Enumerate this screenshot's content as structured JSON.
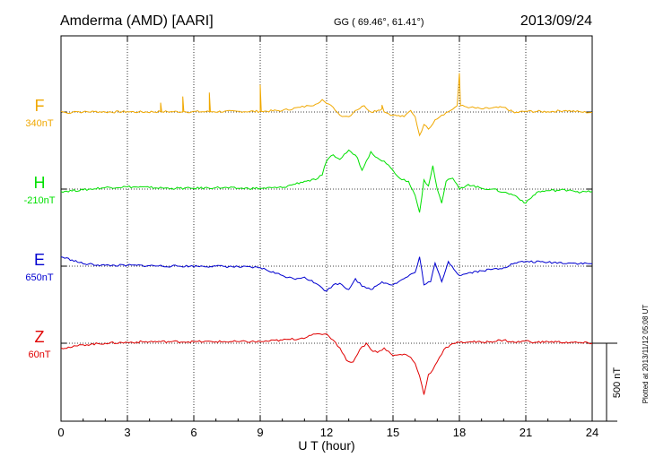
{
  "chart_data": {
    "type": "line",
    "station_title": "Amderma (AMD)  [AARI]",
    "coords_label": "GG ( 69.46°,  61.41°)",
    "date": "2013/09/24",
    "xlabel": "U T (hour)",
    "xlim": [
      0,
      24
    ],
    "x_ticks": [
      "0",
      "3",
      "6",
      "9",
      "12",
      "15",
      "18",
      "21",
      "24"
    ],
    "plotted_note": "Plotted at 2013/11/12 05:08 UT",
    "scale_label": "500 nT",
    "series": [
      {
        "name": "F",
        "baseline_label": "340nT",
        "color": "#f0a800",
        "points": [
          [
            0,
            4
          ],
          [
            0.3,
            -8
          ],
          [
            0.6,
            4
          ],
          [
            1,
            0
          ],
          [
            1.5,
            3
          ],
          [
            2,
            0
          ],
          [
            3,
            2
          ],
          [
            3.5,
            0
          ],
          [
            4.5,
            2
          ],
          [
            4.5,
            60
          ],
          [
            4.55,
            2
          ],
          [
            5.5,
            2
          ],
          [
            5.5,
            100
          ],
          [
            5.55,
            2
          ],
          [
            6.7,
            2
          ],
          [
            6.7,
            125
          ],
          [
            6.75,
            2
          ],
          [
            8,
            4
          ],
          [
            9,
            4
          ],
          [
            9,
            175
          ],
          [
            9.05,
            4
          ],
          [
            10,
            10
          ],
          [
            10.8,
            30
          ],
          [
            11.2,
            40
          ],
          [
            11.5,
            50
          ],
          [
            11.8,
            80
          ],
          [
            12,
            55
          ],
          [
            12.3,
            30
          ],
          [
            12.6,
            -20
          ],
          [
            13,
            -30
          ],
          [
            13.3,
            10
          ],
          [
            13.7,
            40
          ],
          [
            14,
            0
          ],
          [
            14.5,
            20
          ],
          [
            14.5,
            45
          ],
          [
            14.6,
            0
          ],
          [
            15,
            -20
          ],
          [
            15.5,
            -30
          ],
          [
            15.8,
            10
          ],
          [
            16,
            -30
          ],
          [
            16.2,
            -150
          ],
          [
            16.4,
            -80
          ],
          [
            16.6,
            -110
          ],
          [
            16.9,
            -50
          ],
          [
            17.2,
            -20
          ],
          [
            17.6,
            10
          ],
          [
            17.9,
            40
          ],
          [
            18,
            250
          ],
          [
            18.05,
            40
          ],
          [
            18.5,
            30
          ],
          [
            19,
            20
          ],
          [
            20,
            30
          ],
          [
            20.5,
            -5
          ],
          [
            21,
            5
          ],
          [
            22,
            2
          ],
          [
            22.8,
            10
          ],
          [
            23.5,
            0
          ],
          [
            24,
            -3
          ]
        ]
      },
      {
        "name": "H",
        "baseline_label": "-210nT",
        "color": "#00e000",
        "points": [
          [
            0,
            -15
          ],
          [
            1,
            -5
          ],
          [
            2,
            10
          ],
          [
            3,
            15
          ],
          [
            4,
            10
          ],
          [
            5,
            5
          ],
          [
            6,
            5
          ],
          [
            7,
            10
          ],
          [
            8,
            5
          ],
          [
            9,
            5
          ],
          [
            10,
            10
          ],
          [
            10.5,
            30
          ],
          [
            11,
            50
          ],
          [
            11.5,
            60
          ],
          [
            11.8,
            90
          ],
          [
            12,
            180
          ],
          [
            12.3,
            220
          ],
          [
            12.6,
            190
          ],
          [
            13,
            250
          ],
          [
            13.4,
            200
          ],
          [
            13.6,
            120
          ],
          [
            14,
            240
          ],
          [
            14.3,
            200
          ],
          [
            14.6,
            180
          ],
          [
            15,
            120
          ],
          [
            15.3,
            70
          ],
          [
            15.7,
            50
          ],
          [
            16,
            -40
          ],
          [
            16.2,
            -150
          ],
          [
            16.4,
            60
          ],
          [
            16.6,
            20
          ],
          [
            16.8,
            150
          ],
          [
            17,
            0
          ],
          [
            17.2,
            -90
          ],
          [
            17.4,
            50
          ],
          [
            17.7,
            70
          ],
          [
            18,
            0
          ],
          [
            18.4,
            30
          ],
          [
            19,
            5
          ],
          [
            19.5,
            0
          ],
          [
            20,
            -20
          ],
          [
            20.5,
            -40
          ],
          [
            21,
            -90
          ],
          [
            21.5,
            -20
          ],
          [
            22,
            -10
          ],
          [
            23,
            -5
          ],
          [
            23.5,
            -20
          ],
          [
            24,
            -15
          ]
        ]
      },
      {
        "name": "E",
        "baseline_label": "650nT",
        "color": "#0000d0",
        "points": [
          [
            0,
            60
          ],
          [
            0.5,
            40
          ],
          [
            1,
            15
          ],
          [
            2,
            5
          ],
          [
            3,
            5
          ],
          [
            4,
            3
          ],
          [
            5,
            0
          ],
          [
            7,
            0
          ],
          [
            9,
            -10
          ],
          [
            10,
            -60
          ],
          [
            10.5,
            -80
          ],
          [
            11,
            -70
          ],
          [
            11.5,
            -110
          ],
          [
            11.8,
            -140
          ],
          [
            12,
            -160
          ],
          [
            12.3,
            -120
          ],
          [
            12.6,
            -110
          ],
          [
            13,
            -150
          ],
          [
            13.3,
            -80
          ],
          [
            13.6,
            -130
          ],
          [
            14,
            -150
          ],
          [
            14.5,
            -100
          ],
          [
            15,
            -120
          ],
          [
            15.5,
            -80
          ],
          [
            16,
            -40
          ],
          [
            16.2,
            60
          ],
          [
            16.4,
            -120
          ],
          [
            16.7,
            -100
          ],
          [
            16.9,
            20
          ],
          [
            17.2,
            -100
          ],
          [
            17.5,
            30
          ],
          [
            18,
            -60
          ],
          [
            18.5,
            -40
          ],
          [
            19,
            -30
          ],
          [
            20,
            -10
          ],
          [
            20.5,
            20
          ],
          [
            21,
            30
          ],
          [
            22,
            25
          ],
          [
            23,
            20
          ],
          [
            24,
            15
          ]
        ]
      },
      {
        "name": "Z",
        "baseline_label": "60nT",
        "color": "#e00000",
        "points": [
          [
            0,
            -30
          ],
          [
            0.5,
            -25
          ],
          [
            1,
            -10
          ],
          [
            2,
            0
          ],
          [
            3,
            5
          ],
          [
            4,
            10
          ],
          [
            5,
            10
          ],
          [
            6,
            10
          ],
          [
            7,
            10
          ],
          [
            8,
            10
          ],
          [
            9,
            10
          ],
          [
            10,
            20
          ],
          [
            10.8,
            30
          ],
          [
            11.3,
            50
          ],
          [
            11.7,
            60
          ],
          [
            12,
            60
          ],
          [
            12.3,
            20
          ],
          [
            12.6,
            -30
          ],
          [
            12.9,
            -110
          ],
          [
            13.2,
            -120
          ],
          [
            13.5,
            -40
          ],
          [
            13.8,
            0
          ],
          [
            14,
            -40
          ],
          [
            14.3,
            -60
          ],
          [
            14.6,
            -30
          ],
          [
            15,
            -80
          ],
          [
            15.5,
            -70
          ],
          [
            15.8,
            -90
          ],
          [
            16,
            -130
          ],
          [
            16.2,
            -210
          ],
          [
            16.4,
            -330
          ],
          [
            16.6,
            -200
          ],
          [
            16.8,
            -170
          ],
          [
            17.1,
            -90
          ],
          [
            17.3,
            -40
          ],
          [
            17.6,
            -10
          ],
          [
            18,
            5
          ],
          [
            18.5,
            10
          ],
          [
            19,
            5
          ],
          [
            20,
            20
          ],
          [
            20.5,
            5
          ],
          [
            21,
            15
          ],
          [
            21.5,
            5
          ],
          [
            22,
            10
          ],
          [
            23,
            5
          ],
          [
            24,
            0
          ]
        ]
      }
    ]
  }
}
